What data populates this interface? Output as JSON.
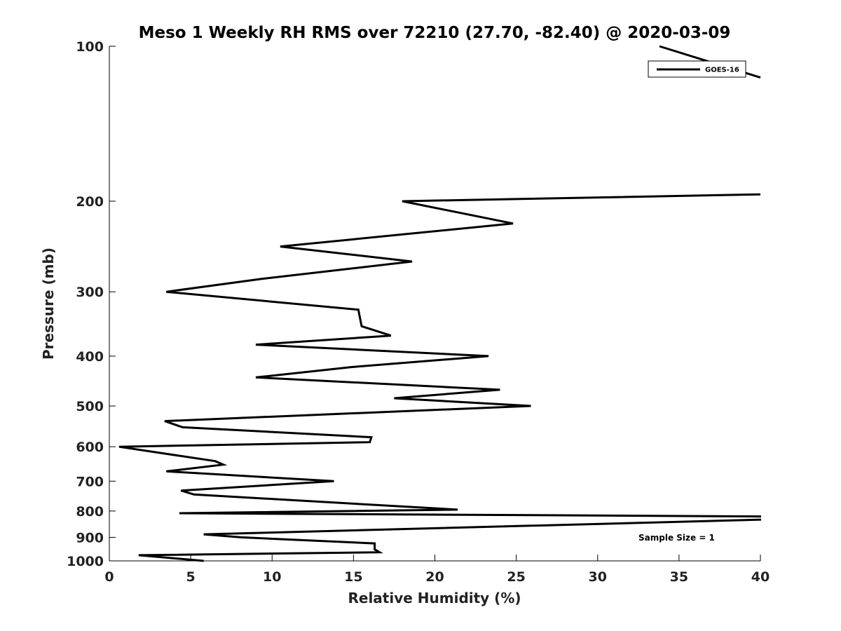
{
  "chart_data": {
    "type": "line",
    "title": "Meso 1 Weekly RH RMS over 72210 (27.70, -82.40) @ 2020-03-09",
    "xlabel": "Relative Humidity (%)",
    "ylabel": "Pressure (mb)",
    "xlim": [
      0,
      40
    ],
    "ylim": [
      1000,
      100
    ],
    "y_scale": "log",
    "grid": false,
    "legend_position": "top-right",
    "x_ticks": [
      0,
      5,
      10,
      15,
      20,
      25,
      30,
      35,
      40
    ],
    "y_ticks": [
      100,
      200,
      300,
      400,
      500,
      600,
      700,
      800,
      900,
      1000
    ],
    "annotation": "Sample Size = 1",
    "series": [
      {
        "name": "GOES-16",
        "color": "#000000",
        "points": [
          [
            5.8,
            1000
          ],
          [
            1.8,
            975
          ],
          [
            16.6,
            962
          ],
          [
            16.3,
            950
          ],
          [
            16.3,
            925
          ],
          [
            8.1,
            900
          ],
          [
            5.8,
            888
          ],
          [
            41.0,
            830
          ],
          [
            41.0,
            820
          ],
          [
            4.3,
            808
          ],
          [
            21.4,
            795
          ],
          [
            5.2,
            743
          ],
          [
            4.4,
            730
          ],
          [
            13.8,
            700
          ],
          [
            3.5,
            670
          ],
          [
            7.0,
            650
          ],
          [
            6.5,
            640
          ],
          [
            0.6,
            600
          ],
          [
            16.0,
            588
          ],
          [
            16.1,
            575
          ],
          [
            4.5,
            550
          ],
          [
            3.4,
            535
          ],
          [
            25.9,
            500
          ],
          [
            17.5,
            483
          ],
          [
            24.0,
            465
          ],
          [
            9.0,
            440
          ],
          [
            14.9,
            420
          ],
          [
            23.3,
            400
          ],
          [
            9.0,
            380
          ],
          [
            17.3,
            365
          ],
          [
            15.5,
            350
          ],
          [
            15.3,
            325
          ],
          [
            3.5,
            300
          ],
          [
            9.4,
            283
          ],
          [
            18.6,
            262
          ],
          [
            10.5,
            245
          ],
          [
            24.8,
            221
          ],
          [
            18.0,
            200
          ],
          [
            40.0,
            194
          ]
        ],
        "upper_segment": [
          [
            33.8,
            100
          ],
          [
            40.0,
            115
          ]
        ]
      }
    ]
  }
}
